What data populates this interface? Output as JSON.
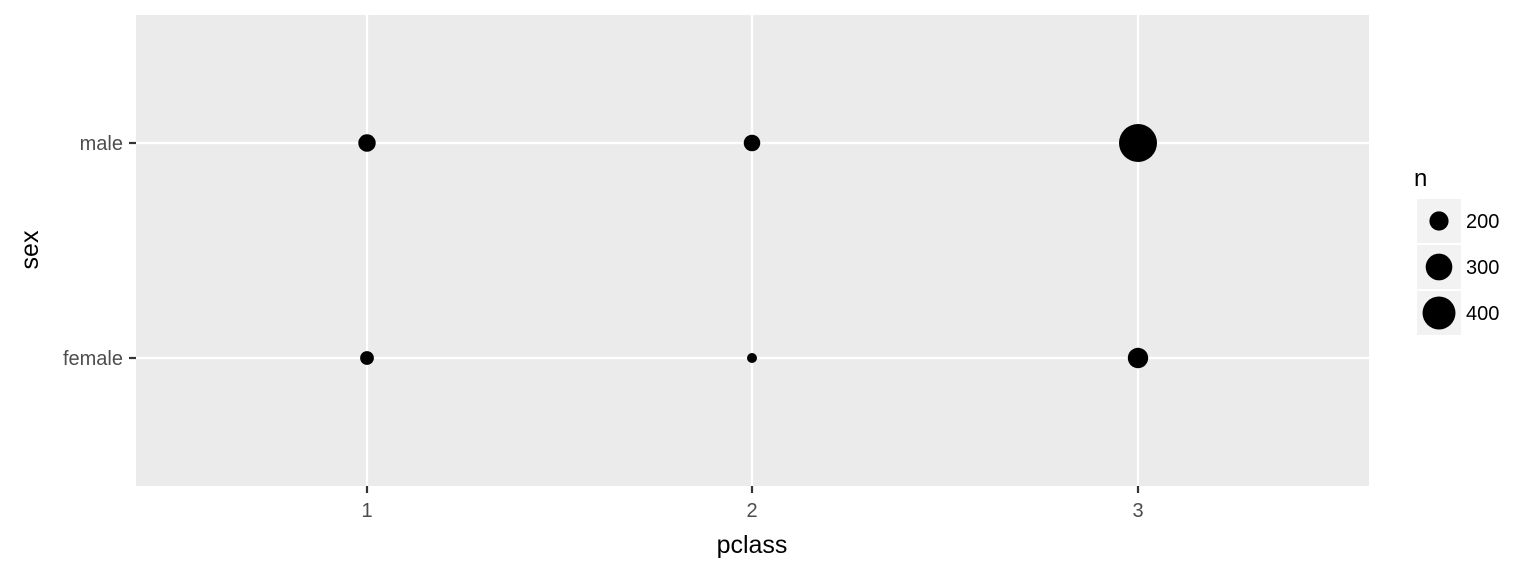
{
  "chart_data": {
    "type": "scatter",
    "xlabel": "pclass",
    "ylabel": "sex",
    "x_categories": [
      "1",
      "2",
      "3"
    ],
    "y_categories": [
      "female",
      "male"
    ],
    "points": [
      {
        "x": "1",
        "y": "male",
        "n": 180
      },
      {
        "x": "2",
        "y": "male",
        "n": 170
      },
      {
        "x": "3",
        "y": "male",
        "n": 490
      },
      {
        "x": "1",
        "y": "female",
        "n": 140
      },
      {
        "x": "2",
        "y": "female",
        "n": 105
      },
      {
        "x": "3",
        "y": "female",
        "n": 215
      }
    ],
    "size_range": [
      105,
      490
    ],
    "legend": {
      "title": "n",
      "position": "right",
      "breaks": [
        200,
        300,
        400
      ],
      "labels": [
        "200",
        "300",
        "400"
      ]
    },
    "grid": true,
    "colors": {
      "panel": "#EBEBEB",
      "grid": "#FFFFFF",
      "point": "#000000",
      "legend_key": "#F2F2F2"
    }
  }
}
